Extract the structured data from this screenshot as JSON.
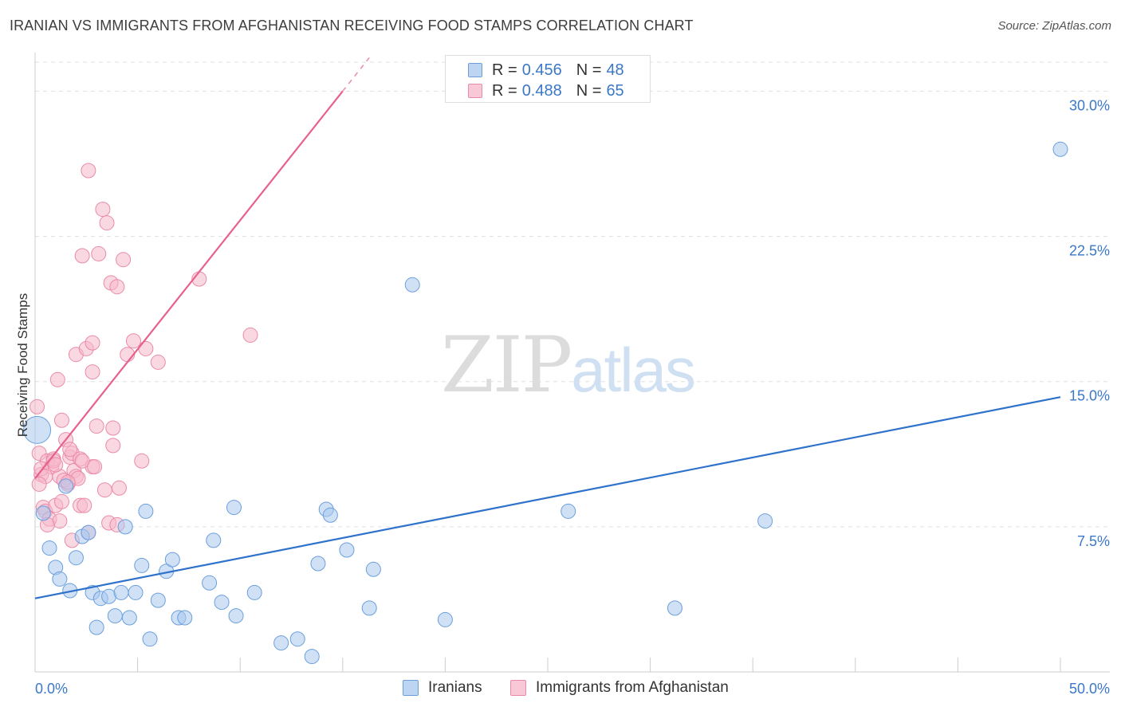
{
  "title": "IRANIAN VS IMMIGRANTS FROM AFGHANISTAN RECEIVING FOOD STAMPS CORRELATION CHART",
  "source": "Source: ZipAtlas.com",
  "watermark": {
    "zip": "ZIP",
    "atlas": "atlas"
  },
  "legend": {
    "iranians": {
      "r_label": "R =",
      "r_value": "0.456",
      "n_label": "N =",
      "n_value": "48"
    },
    "afghan": {
      "r_label": "R =",
      "r_value": "0.488",
      "n_label": "N =",
      "n_value": "65"
    }
  },
  "bottom_legend": {
    "iranians": "Iranians",
    "afghan": "Immigrants from Afghanistan"
  },
  "colors": {
    "blue_fill": "#a9c9ef",
    "blue_stroke": "#6a9fdc",
    "blue_line": "#2f72cc",
    "pink_fill": "#f5b8cb",
    "pink_stroke": "#ea8aa8",
    "pink_line": "#e8608c",
    "grid": "#e0e0e0",
    "tick_text": "#3b78c7"
  },
  "chart_data": {
    "type": "scatter",
    "title": "IRANIAN VS IMMIGRANTS FROM AFGHANISTAN RECEIVING FOOD STAMPS CORRELATION CHART",
    "xlabel": "",
    "ylabel": "Receiving Food Stamps",
    "xlim": [
      0,
      50
    ],
    "ylim": [
      0,
      31.5
    ],
    "x_tick_labels": [
      "0.0%",
      "50.0%"
    ],
    "y_ticks": [
      7.5,
      15.0,
      22.5,
      30.0
    ],
    "y_tick_labels": [
      "7.5%",
      "15.0%",
      "22.5%",
      "30.0%"
    ],
    "series": [
      {
        "name": "Iranians",
        "color": "#6a9fdc",
        "trend": {
          "x": [
            0,
            50
          ],
          "y": [
            3.8,
            14.2
          ]
        },
        "points": [
          {
            "x": 0.1,
            "y": 12.5,
            "big": true
          },
          {
            "x": 0.4,
            "y": 8.2
          },
          {
            "x": 0.7,
            "y": 6.4
          },
          {
            "x": 1.0,
            "y": 5.4
          },
          {
            "x": 1.2,
            "y": 4.8
          },
          {
            "x": 1.7,
            "y": 4.2
          },
          {
            "x": 1.5,
            "y": 9.6
          },
          {
            "x": 2.0,
            "y": 5.9
          },
          {
            "x": 2.3,
            "y": 7.0
          },
          {
            "x": 2.6,
            "y": 7.2
          },
          {
            "x": 2.8,
            "y": 4.1
          },
          {
            "x": 3.0,
            "y": 2.3
          },
          {
            "x": 3.2,
            "y": 3.8
          },
          {
            "x": 3.6,
            "y": 3.9
          },
          {
            "x": 3.9,
            "y": 2.9
          },
          {
            "x": 4.2,
            "y": 4.1
          },
          {
            "x": 4.4,
            "y": 7.5
          },
          {
            "x": 4.6,
            "y": 2.8
          },
          {
            "x": 4.9,
            "y": 4.1
          },
          {
            "x": 5.2,
            "y": 5.5
          },
          {
            "x": 5.4,
            "y": 8.3
          },
          {
            "x": 5.6,
            "y": 1.7
          },
          {
            "x": 6.0,
            "y": 3.7
          },
          {
            "x": 6.4,
            "y": 5.2
          },
          {
            "x": 6.7,
            "y": 5.8
          },
          {
            "x": 7.0,
            "y": 2.8
          },
          {
            "x": 7.3,
            "y": 2.8
          },
          {
            "x": 8.5,
            "y": 4.6
          },
          {
            "x": 8.7,
            "y": 6.8
          },
          {
            "x": 9.1,
            "y": 3.6
          },
          {
            "x": 9.8,
            "y": 2.9
          },
          {
            "x": 9.7,
            "y": 8.5
          },
          {
            "x": 10.7,
            "y": 4.1
          },
          {
            "x": 12.0,
            "y": 1.5
          },
          {
            "x": 12.8,
            "y": 1.7
          },
          {
            "x": 13.5,
            "y": 0.8
          },
          {
            "x": 13.8,
            "y": 5.6
          },
          {
            "x": 14.2,
            "y": 8.4
          },
          {
            "x": 14.4,
            "y": 8.1
          },
          {
            "x": 15.2,
            "y": 6.3
          },
          {
            "x": 16.3,
            "y": 3.3
          },
          {
            "x": 16.5,
            "y": 5.3
          },
          {
            "x": 18.4,
            "y": 20.0
          },
          {
            "x": 20.0,
            "y": 2.7
          },
          {
            "x": 26.0,
            "y": 8.3
          },
          {
            "x": 31.2,
            "y": 3.3
          },
          {
            "x": 35.6,
            "y": 7.8
          },
          {
            "x": 50.0,
            "y": 27.0
          }
        ]
      },
      {
        "name": "Immigrants from Afghanistan",
        "color": "#ea8aa8",
        "trend": {
          "x": [
            0,
            15
          ],
          "y": [
            10.0,
            30.0
          ],
          "solid_until_x": 15,
          "dashed_from_x": 15
        },
        "points": [
          {
            "x": 0.1,
            "y": 13.7
          },
          {
            "x": 0.2,
            "y": 11.3
          },
          {
            "x": 0.3,
            "y": 10.2
          },
          {
            "x": 0.4,
            "y": 8.5
          },
          {
            "x": 0.5,
            "y": 8.3
          },
          {
            "x": 0.6,
            "y": 10.9
          },
          {
            "x": 0.7,
            "y": 7.9
          },
          {
            "x": 0.8,
            "y": 10.6
          },
          {
            "x": 0.9,
            "y": 11.0
          },
          {
            "x": 1.0,
            "y": 8.6
          },
          {
            "x": 1.1,
            "y": 15.1
          },
          {
            "x": 1.2,
            "y": 10.1
          },
          {
            "x": 1.2,
            "y": 7.8
          },
          {
            "x": 1.3,
            "y": 8.8
          },
          {
            "x": 1.3,
            "y": 13.0
          },
          {
            "x": 1.5,
            "y": 12.0
          },
          {
            "x": 1.6,
            "y": 9.7
          },
          {
            "x": 1.7,
            "y": 11.1
          },
          {
            "x": 1.8,
            "y": 11.3
          },
          {
            "x": 1.8,
            "y": 6.8
          },
          {
            "x": 1.9,
            "y": 10.4
          },
          {
            "x": 2.0,
            "y": 10.1
          },
          {
            "x": 2.0,
            "y": 16.4
          },
          {
            "x": 2.1,
            "y": 10.0
          },
          {
            "x": 2.2,
            "y": 11.0
          },
          {
            "x": 2.2,
            "y": 8.6
          },
          {
            "x": 2.3,
            "y": 21.5
          },
          {
            "x": 2.4,
            "y": 8.6
          },
          {
            "x": 2.5,
            "y": 16.7
          },
          {
            "x": 2.6,
            "y": 7.2
          },
          {
            "x": 2.6,
            "y": 25.9
          },
          {
            "x": 2.8,
            "y": 10.6
          },
          {
            "x": 2.8,
            "y": 15.5
          },
          {
            "x": 2.8,
            "y": 17.0
          },
          {
            "x": 3.0,
            "y": 12.7
          },
          {
            "x": 3.1,
            "y": 21.6
          },
          {
            "x": 3.3,
            "y": 23.9
          },
          {
            "x": 3.4,
            "y": 9.4
          },
          {
            "x": 3.5,
            "y": 23.2
          },
          {
            "x": 3.6,
            "y": 7.7
          },
          {
            "x": 3.7,
            "y": 20.1
          },
          {
            "x": 3.8,
            "y": 11.7
          },
          {
            "x": 3.8,
            "y": 12.6
          },
          {
            "x": 4.0,
            "y": 19.9
          },
          {
            "x": 4.0,
            "y": 7.6
          },
          {
            "x": 4.1,
            "y": 9.5
          },
          {
            "x": 4.3,
            "y": 21.3
          },
          {
            "x": 4.5,
            "y": 16.4
          },
          {
            "x": 4.8,
            "y": 17.1
          },
          {
            "x": 5.2,
            "y": 10.9
          },
          {
            "x": 5.4,
            "y": 16.7
          },
          {
            "x": 6.0,
            "y": 16.0
          },
          {
            "x": 8.0,
            "y": 20.3
          },
          {
            "x": 10.5,
            "y": 17.4
          },
          {
            "x": 0.3,
            "y": 10.5
          },
          {
            "x": 0.5,
            "y": 10.1
          },
          {
            "x": 0.6,
            "y": 7.6
          },
          {
            "x": 0.9,
            "y": 10.9
          },
          {
            "x": 1.4,
            "y": 9.9
          },
          {
            "x": 1.6,
            "y": 9.8
          },
          {
            "x": 2.3,
            "y": 10.9
          },
          {
            "x": 2.9,
            "y": 10.6
          },
          {
            "x": 0.2,
            "y": 9.7
          },
          {
            "x": 1.0,
            "y": 10.7
          },
          {
            "x": 1.7,
            "y": 11.5
          }
        ]
      }
    ]
  }
}
